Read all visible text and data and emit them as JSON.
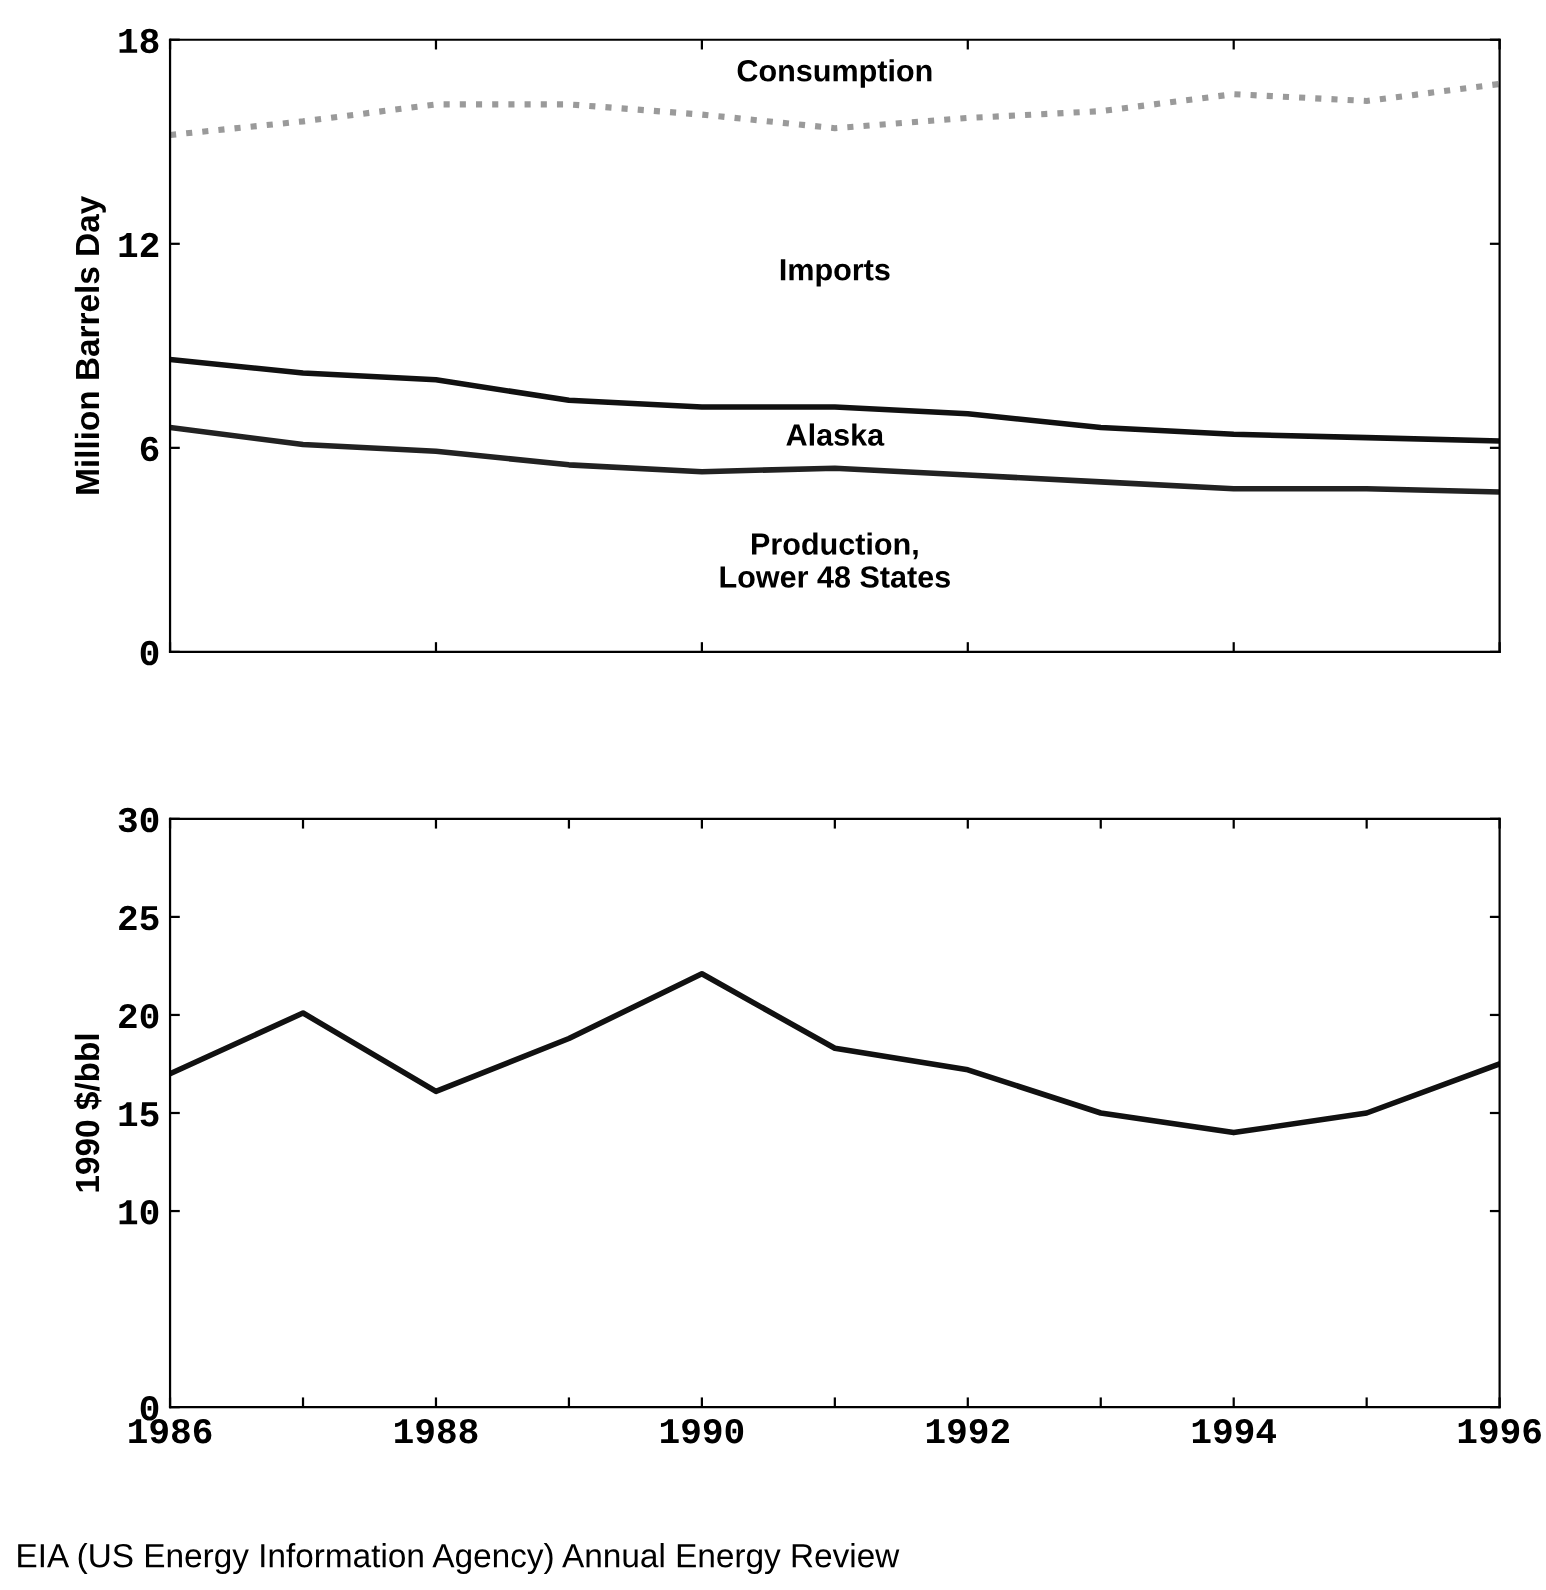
{
  "chart_data": [
    {
      "type": "line",
      "ylabel": "Million Barrels Day",
      "x": [
        1986,
        1987,
        1988,
        1989,
        1990,
        1991,
        1992,
        1993,
        1994,
        1995,
        1996
      ],
      "xlim": [
        1986,
        1996
      ],
      "xticks": [
        {
          "value": 1986,
          "label": null
        },
        {
          "value": 1988,
          "label": null
        },
        {
          "value": 1990,
          "label": null
        },
        {
          "value": 1992,
          "label": null
        },
        {
          "value": 1994,
          "label": null
        },
        {
          "value": 1996,
          "label": null
        }
      ],
      "ylim": [
        0,
        18
      ],
      "yticks": [
        0,
        6,
        12,
        18
      ],
      "tick_labels": "y",
      "grid": false,
      "legend": false,
      "series": [
        {
          "color": "#9a9a9a",
          "line_style": "dotted",
          "values": [
            15.2,
            15.6,
            16.1,
            16.1,
            15.8,
            15.4,
            15.7,
            15.9,
            16.4,
            16.2,
            16.7
          ]
        },
        {
          "color": "#111111",
          "line_style": "solid",
          "values": [
            8.6,
            8.2,
            8.0,
            7.4,
            7.2,
            7.2,
            7.0,
            6.6,
            6.4,
            6.3,
            6.2
          ]
        },
        {
          "color": "#222222",
          "line_style": "solid",
          "values": [
            6.6,
            6.1,
            5.9,
            5.5,
            5.3,
            5.4,
            5.2,
            5.0,
            4.8,
            4.8,
            4.7
          ]
        }
      ],
      "annotations": [
        "Consumption",
        "Imports",
        "Alaska",
        "Production,\nLower 48 States"
      ]
    },
    {
      "type": "line",
      "ylabel": "1990 $/bbl",
      "x": [
        1986,
        1987,
        1988,
        1989,
        1990,
        1991,
        1992,
        1993,
        1994,
        1995,
        1996
      ],
      "xlim": [
        1986,
        1996
      ],
      "xticks": [
        1986,
        {
          "value": 1987,
          "label": null
        },
        1988,
        {
          "value": 1989,
          "label": null
        },
        1990,
        {
          "value": 1991,
          "label": null
        },
        1992,
        {
          "value": 1993,
          "label": null
        },
        1994,
        {
          "value": 1995,
          "label": null
        },
        1996
      ],
      "ylim": [
        0,
        30
      ],
      "yticks": [
        0,
        10,
        15,
        20,
        25,
        30
      ],
      "grid": false,
      "legend": false,
      "series": [
        {
          "color": "#111111",
          "line_style": "solid",
          "values": [
            17.0,
            20.1,
            16.1,
            18.8,
            22.1,
            18.3,
            17.2,
            15.0,
            14.0,
            15.0,
            17.5
          ]
        }
      ],
      "annotations": [
        "EIA (US Energy Information Agency) Annual Energy Review"
      ]
    }
  ]
}
